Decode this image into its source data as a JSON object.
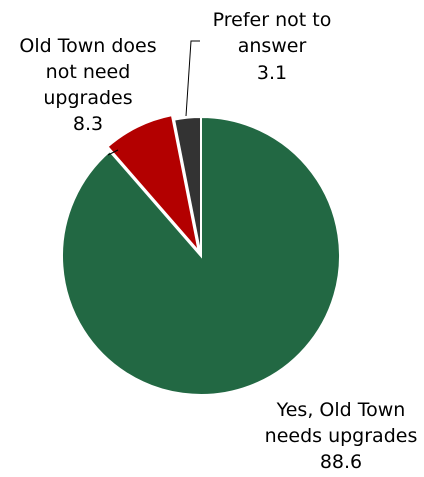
{
  "chart_data": {
    "type": "pie",
    "start": "top",
    "direction": "clockwise",
    "slices": [
      {
        "label": "Yes, Old Town needs upgrades",
        "value": 88.6,
        "value_label": "88.6",
        "color": "#226843",
        "label_lines": [
          "Yes, Old Town",
          "needs upgrades"
        ]
      },
      {
        "label": "Old Town does not need upgrades",
        "value": 8.3,
        "value_label": "8.3",
        "color": "#b30000",
        "label_lines": [
          "Old Town does",
          "not need",
          "upgrades"
        ]
      },
      {
        "label": "Prefer not to answer",
        "value": 3.1,
        "value_label": "3.1",
        "color": "#333333",
        "label_lines": [
          "Prefer not to",
          "answer"
        ]
      }
    ],
    "legend": "none",
    "leader_line_color": "#000000",
    "slice_border_color": "#ffffff"
  }
}
